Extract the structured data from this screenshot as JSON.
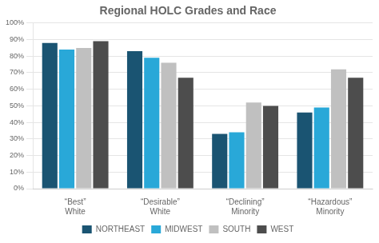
{
  "chart_data": {
    "type": "bar",
    "title": "Regional HOLC Grades and Race",
    "categories": [
      [
        "“Best”",
        "White"
      ],
      [
        "“Desirable”",
        "White"
      ],
      [
        "“Declining”",
        "Minority"
      ],
      [
        "“Hazardous”",
        "Minority"
      ]
    ],
    "series": [
      {
        "name": "NORTHEAST",
        "color": "#1a5472",
        "values": [
          88,
          83,
          33,
          46
        ]
      },
      {
        "name": "MIDWEST",
        "color": "#29a8d8",
        "values": [
          84,
          79,
          34,
          49
        ]
      },
      {
        "name": "SOUTH",
        "color": "#c0c0c0",
        "values": [
          85,
          76,
          52,
          72
        ]
      },
      {
        "name": "WEST",
        "color": "#4d4d4d",
        "values": [
          89,
          67,
          50,
          67
        ]
      }
    ],
    "ylim": [
      0,
      100
    ],
    "yticks": [
      {
        "value": 0,
        "label": "0%"
      },
      {
        "value": 10,
        "label": "10%"
      },
      {
        "value": 20,
        "label": "20%"
      },
      {
        "value": 30,
        "label": "30%"
      },
      {
        "value": 40,
        "label": "40%"
      },
      {
        "value": 50,
        "label": "50%"
      },
      {
        "value": 60,
        "label": "60%"
      },
      {
        "value": 70,
        "label": "70%"
      },
      {
        "value": 80,
        "label": "80%"
      },
      {
        "value": 90,
        "label": "90%"
      },
      {
        "value": 100,
        "label": "100%"
      }
    ],
    "grid": true,
    "legend": "bottom"
  }
}
